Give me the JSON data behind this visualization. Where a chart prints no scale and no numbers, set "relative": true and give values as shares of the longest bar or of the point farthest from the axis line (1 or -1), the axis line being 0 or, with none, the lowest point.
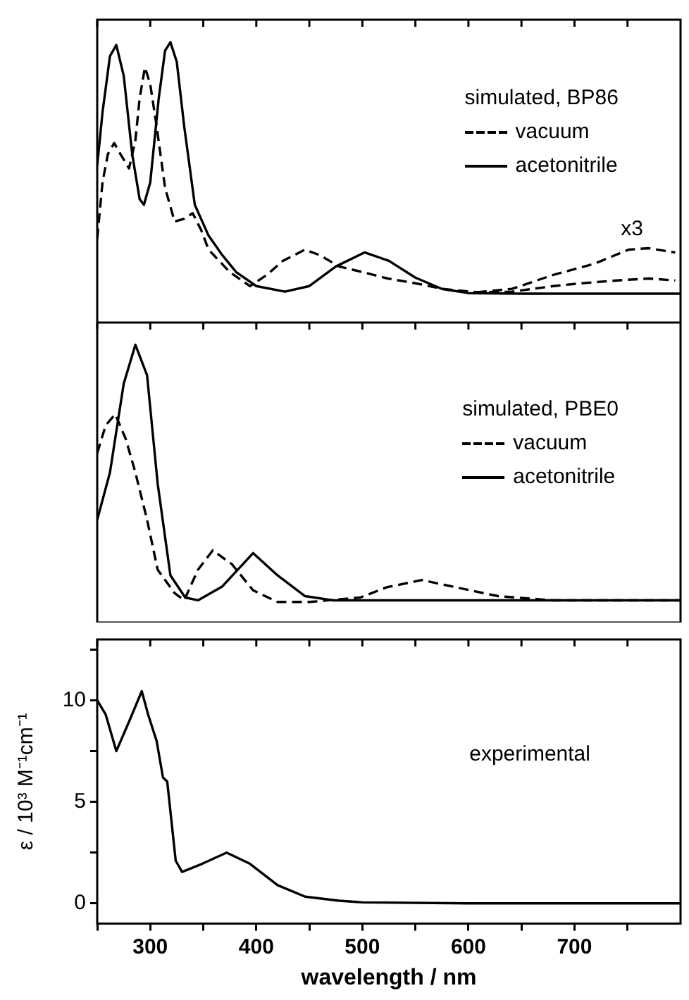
{
  "chart_data": [
    {
      "type": "line",
      "legend_title": "simulated, BP86",
      "relative": true,
      "legend": "top right",
      "tick_labels": false,
      "marker": "none",
      "xlim": [
        250,
        800
      ],
      "xticks": [
        {
          "value": 250,
          "label": null
        },
        300,
        {
          "value": 350,
          "label": null
        },
        400,
        {
          "value": 450,
          "label": null
        },
        500,
        {
          "value": 550,
          "label": null
        },
        600,
        {
          "value": 650,
          "label": null
        },
        700,
        {
          "value": 750,
          "label": null
        }
      ],
      "annotations": [
        {
          "text": "x3",
          "x": 770,
          "y": 0.265
        }
      ],
      "series": [
        {
          "name": "vacuum",
          "color": "#000000",
          "line_style": "dashed",
          "x": [
            250,
            255,
            260,
            266,
            272,
            280,
            286,
            290,
            295,
            300,
            306,
            314,
            323,
            332,
            340,
            348,
            355,
            365,
            375,
            394,
            410,
            425,
            446,
            460,
            478,
            500,
            524,
            550,
            576,
            608,
            641,
            680,
            706,
            740,
            770,
            795
          ],
          "values": [
            0.3,
            0.5,
            0.6,
            0.64,
            0.6,
            0.55,
            0.65,
            0.8,
            0.91,
            0.85,
            0.7,
            0.48,
            0.36,
            0.37,
            0.39,
            0.33,
            0.26,
            0.22,
            0.18,
            0.13,
            0.17,
            0.22,
            0.26,
            0.24,
            0.2,
            0.18,
            0.157,
            0.14,
            0.12,
            0.108,
            0.11,
            0.13,
            0.14,
            0.15,
            0.157,
            0.15
          ]
        },
        {
          "name": "acetonitrile",
          "color": "#000000",
          "line_style": "solid",
          "x": [
            250,
            255,
            262,
            268,
            275,
            283,
            290,
            294,
            300,
            308,
            314,
            319,
            325,
            332,
            342,
            355,
            368,
            381,
            400,
            427,
            450,
            475,
            502,
            525,
            550,
            575,
            600,
            650,
            800
          ],
          "values": [
            0.56,
            0.75,
            0.95,
            0.99,
            0.88,
            0.6,
            0.44,
            0.42,
            0.5,
            0.8,
            0.97,
            1.0,
            0.93,
            0.7,
            0.42,
            0.31,
            0.24,
            0.18,
            0.13,
            0.11,
            0.13,
            0.2,
            0.25,
            0.22,
            0.16,
            0.12,
            0.105,
            0.103,
            0.103
          ]
        },
        {
          "color": "#000000",
          "line_style": "dashed",
          "x": [
            608,
            641,
            680,
            719,
            751,
            770,
            795
          ],
          "values": [
            0.108,
            0.12,
            0.17,
            0.21,
            0.26,
            0.265,
            0.25
          ]
        }
      ]
    },
    {
      "type": "line",
      "legend_title": "simulated, PBE0",
      "relative": true,
      "legend": "top right",
      "tick_labels": false,
      "marker": "none",
      "xlim": [
        250,
        800
      ],
      "xticks": [
        {
          "value": 250,
          "label": null
        },
        300,
        {
          "value": 350,
          "label": null
        },
        400,
        {
          "value": 450,
          "label": null
        },
        500,
        {
          "value": 550,
          "label": null
        },
        600,
        {
          "value": 650,
          "label": null
        },
        700,
        {
          "value": 750,
          "label": null
        }
      ],
      "series": [
        {
          "name": "vacuum",
          "color": "#000000",
          "line_style": "dashed",
          "x": [
            250,
            258,
            267,
            277,
            286,
            297,
            307,
            323,
            332,
            345,
            359,
            377,
            397,
            420,
            450,
            498,
            523,
            556,
            588,
            628,
            680,
            800
          ],
          "values": [
            0.61,
            0.71,
            0.75,
            0.66,
            0.54,
            0.37,
            0.19,
            0.106,
            0.08,
            0.19,
            0.26,
            0.21,
            0.116,
            0.074,
            0.074,
            0.09,
            0.127,
            0.153,
            0.127,
            0.095,
            0.08,
            0.08
          ]
        },
        {
          "name": "acetonitrile",
          "color": "#000000",
          "line_style": "solid",
          "x": [
            250,
            262,
            275,
            286,
            297,
            307,
            319,
            333,
            345,
            368,
            397,
            420,
            446,
            472,
            800
          ],
          "values": [
            0.37,
            0.54,
            0.86,
            1.0,
            0.89,
            0.5,
            0.17,
            0.09,
            0.08,
            0.13,
            0.25,
            0.17,
            0.095,
            0.08,
            0.08
          ]
        }
      ]
    },
    {
      "type": "line",
      "ylabel": "ε / 10³ M⁻¹cm⁻¹",
      "xlabel": "wavelength / nm",
      "marker": "none",
      "line_style": "solid",
      "xlim": [
        250,
        800
      ],
      "xticks": [
        {
          "value": 250,
          "label": null
        },
        300,
        {
          "value": 350,
          "label": null
        },
        400,
        {
          "value": 450,
          "label": null
        },
        500,
        {
          "value": 550,
          "label": null
        },
        600,
        {
          "value": 650,
          "label": null
        },
        700,
        {
          "value": 750,
          "label": null
        }
      ],
      "ylim": [
        -1,
        13
      ],
      "yticks": [
        0,
        {
          "value": 2.5,
          "label": null
        },
        5,
        {
          "value": 7.5,
          "label": null
        },
        10,
        {
          "value": 12.5,
          "label": null
        }
      ],
      "annotations": [
        "experimental"
      ],
      "series": [
        {
          "color": "#000000",
          "x": [
            250,
            258,
            268,
            280,
            292,
            298,
            306,
            312,
            316,
            320,
            324,
            330,
            349,
            372,
            394,
            420,
            446,
            478,
            500,
            600,
            800
          ],
          "values": [
            10.0,
            9.3,
            7.5,
            8.95,
            10.45,
            9.3,
            8.0,
            6.2,
            6.0,
            4.05,
            2.1,
            1.55,
            1.95,
            2.5,
            1.95,
            0.9,
            0.33,
            0.13,
            0.05,
            0,
            0
          ]
        }
      ]
    }
  ]
}
